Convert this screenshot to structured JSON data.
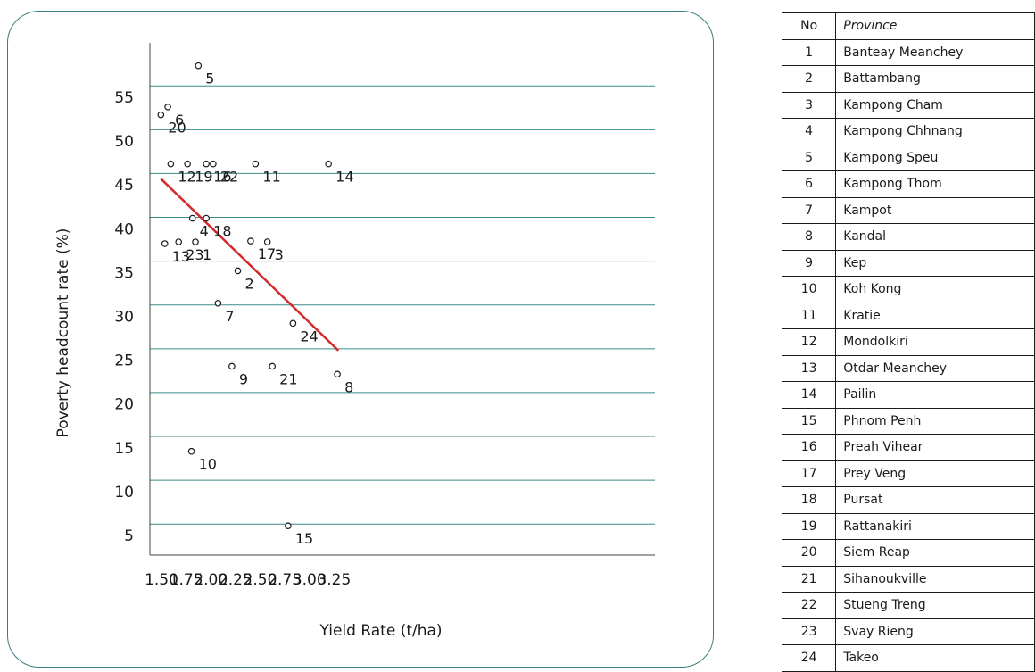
{
  "chart_data": {
    "type": "scatter",
    "xlabel": "Yield Rate (t/ha)",
    "ylabel": "Poverty headcount rate (%)",
    "xlim": [
      1.45,
      3.4
    ],
    "ylim": [
      3,
      61
    ],
    "x_ticks": [
      "1.50",
      "1.75",
      "2.00",
      "2.25",
      "2.50",
      "2.75",
      "3.00",
      "3.25"
    ],
    "y_ticks": [
      "5",
      "10",
      "15",
      "20",
      "25",
      "30",
      "35",
      "40",
      "45",
      "50",
      "55"
    ],
    "points": [
      {
        "label": "1",
        "x": 1.88,
        "y": 38.5
      },
      {
        "label": "2",
        "x": 2.31,
        "y": 35.2
      },
      {
        "label": "3",
        "x": 2.61,
        "y": 38.5
      },
      {
        "label": "4",
        "x": 1.85,
        "y": 41.2
      },
      {
        "label": "5",
        "x": 1.91,
        "y": 58.6
      },
      {
        "label": "6",
        "x": 1.6,
        "y": 53.9
      },
      {
        "label": "7",
        "x": 2.11,
        "y": 31.5
      },
      {
        "label": "8",
        "x": 3.32,
        "y": 23.4
      },
      {
        "label": "9",
        "x": 2.25,
        "y": 24.3
      },
      {
        "label": "10",
        "x": 1.84,
        "y": 14.6
      },
      {
        "label": "11",
        "x": 2.49,
        "y": 47.4
      },
      {
        "label": "12",
        "x": 1.63,
        "y": 47.4
      },
      {
        "label": "13",
        "x": 1.57,
        "y": 38.3
      },
      {
        "label": "14",
        "x": 3.23,
        "y": 47.4
      },
      {
        "label": "15",
        "x": 2.82,
        "y": 6.1
      },
      {
        "label": "16",
        "x": 1.99,
        "y": 47.4
      },
      {
        "label": "17",
        "x": 2.44,
        "y": 38.6
      },
      {
        "label": "18",
        "x": 1.99,
        "y": 41.2
      },
      {
        "label": "19",
        "x": 1.8,
        "y": 47.4
      },
      {
        "label": "20",
        "x": 1.53,
        "y": 53.0
      },
      {
        "label": "21",
        "x": 2.66,
        "y": 24.3
      },
      {
        "label": "22",
        "x": 2.06,
        "y": 47.4
      },
      {
        "label": "23",
        "x": 1.71,
        "y": 38.5
      },
      {
        "label": "24",
        "x": 2.87,
        "y": 29.2
      }
    ],
    "trendline": {
      "x": [
        1.53,
        3.33
      ],
      "y": [
        45.7,
        26.1
      ],
      "color": "#d42a2a"
    },
    "gridlines_y": [
      6.3,
      11.3,
      16.3,
      21.3,
      26.3,
      31.3,
      36.3,
      41.3,
      46.3,
      51.3,
      56.3
    ],
    "grid_color": "#3a8a86"
  },
  "table": {
    "header_no": "No",
    "header_province": "Province",
    "rows": [
      [
        "1",
        "Banteay Meanchey"
      ],
      [
        "2",
        "Battambang"
      ],
      [
        "3",
        "Kampong Cham"
      ],
      [
        "4",
        "Kampong Chhnang"
      ],
      [
        "5",
        "Kampong Speu"
      ],
      [
        "6",
        "Kampong Thom"
      ],
      [
        "7",
        "Kampot"
      ],
      [
        "8",
        "Kandal"
      ],
      [
        "9",
        "Kep"
      ],
      [
        "10",
        "Koh Kong"
      ],
      [
        "11",
        "Kratie"
      ],
      [
        "12",
        "Mondolkiri"
      ],
      [
        "13",
        "Otdar Meanchey"
      ],
      [
        "14",
        "Pailin"
      ],
      [
        "15",
        "Phnom Penh"
      ],
      [
        "16",
        "Preah Vihear"
      ],
      [
        "17",
        "Prey Veng"
      ],
      [
        "18",
        "Pursat"
      ],
      [
        "19",
        "Rattanakiri"
      ],
      [
        "20",
        "Siem Reap"
      ],
      [
        "21",
        "Sihanoukville"
      ],
      [
        "22",
        "Stueng Treng"
      ],
      [
        "23",
        "Svay Rieng"
      ],
      [
        "24",
        "Takeo"
      ]
    ]
  }
}
